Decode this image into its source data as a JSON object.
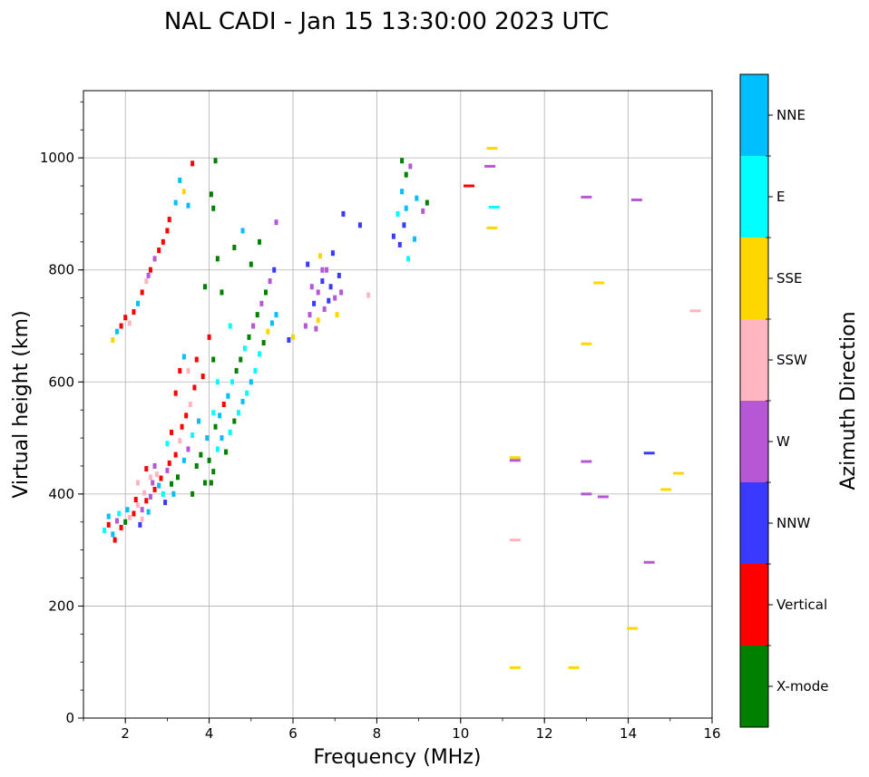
{
  "chart_data": {
    "type": "scatter",
    "title": "NAL CADI - Jan 15 13:30:00 2023 UTC",
    "xlabel": "Frequency (MHz)",
    "ylabel": "Virtual height (km)",
    "xlim": [
      1,
      16
    ],
    "ylim": [
      0,
      1120
    ],
    "xticks": [
      2,
      4,
      6,
      8,
      10,
      12,
      14,
      16
    ],
    "yticks": [
      0,
      200,
      400,
      600,
      800,
      1000
    ],
    "grid": true,
    "colorbar": {
      "label": "Azimuth Direction",
      "position": "right",
      "categories": [
        {
          "name": "X-mode",
          "color": "#008000"
        },
        {
          "name": "Vertical",
          "color": "#ff0000"
        },
        {
          "name": "NNW",
          "color": "#3a3aff"
        },
        {
          "name": "W",
          "color": "#b657d6"
        },
        {
          "name": "SSW",
          "color": "#ffb6c1"
        },
        {
          "name": "SSE",
          "color": "#ffd700"
        },
        {
          "name": "E",
          "color": "#00ffff"
        },
        {
          "name": "NNE",
          "color": "#00bfff"
        }
      ]
    },
    "points": [
      [
        1.5,
        335,
        "E"
      ],
      [
        1.6,
        345,
        "Vertical"
      ],
      [
        1.7,
        328,
        "NNE"
      ],
      [
        1.8,
        352,
        "W"
      ],
      [
        1.9,
        340,
        "Vertical"
      ],
      [
        1.6,
        360,
        "NNE"
      ],
      [
        1.75,
        318,
        "Vertical"
      ],
      [
        1.85,
        365,
        "E"
      ],
      [
        2.0,
        350,
        "X-mode"
      ],
      [
        2.1,
        358,
        "SSW"
      ],
      [
        2.05,
        372,
        "NNE"
      ],
      [
        2.2,
        365,
        "Vertical"
      ],
      [
        2.3,
        380,
        "SSW"
      ],
      [
        2.4,
        372,
        "W"
      ],
      [
        2.25,
        390,
        "Vertical"
      ],
      [
        2.35,
        345,
        "NNW"
      ],
      [
        2.5,
        388,
        "Vertical"
      ],
      [
        2.45,
        402,
        "SSW"
      ],
      [
        2.6,
        395,
        "W"
      ],
      [
        2.55,
        368,
        "NNE"
      ],
      [
        2.7,
        408,
        "Vertical"
      ],
      [
        2.65,
        420,
        "W"
      ],
      [
        2.8,
        415,
        "NNE"
      ],
      [
        2.75,
        435,
        "SSW"
      ],
      [
        2.9,
        400,
        "E"
      ],
      [
        2.85,
        428,
        "Vertical"
      ],
      [
        3.0,
        442,
        "W"
      ],
      [
        2.95,
        385,
        "NNW"
      ],
      [
        3.1,
        418,
        "X-mode"
      ],
      [
        3.05,
        455,
        "Vertical"
      ],
      [
        2.6,
        430,
        "SSW"
      ],
      [
        2.3,
        420,
        "SSW"
      ],
      [
        2.5,
        445,
        "Vertical"
      ],
      [
        2.7,
        450,
        "W"
      ],
      [
        2.4,
        355,
        "SSW"
      ],
      [
        3.2,
        470,
        "Vertical"
      ],
      [
        3.3,
        495,
        "SSW"
      ],
      [
        3.25,
        430,
        "X-mode"
      ],
      [
        3.4,
        460,
        "NNE"
      ],
      [
        3.35,
        520,
        "Vertical"
      ],
      [
        3.5,
        480,
        "W"
      ],
      [
        3.45,
        540,
        "Vertical"
      ],
      [
        3.6,
        505,
        "E"
      ],
      [
        3.55,
        560,
        "SSW"
      ],
      [
        3.7,
        450,
        "X-mode"
      ],
      [
        3.65,
        590,
        "Vertical"
      ],
      [
        3.8,
        470,
        "X-mode"
      ],
      [
        3.75,
        530,
        "NNE"
      ],
      [
        3.85,
        610,
        "Vertical"
      ],
      [
        3.2,
        580,
        "Vertical"
      ],
      [
        3.3,
        620,
        "Vertical"
      ],
      [
        3.4,
        645,
        "NNE"
      ],
      [
        3.1,
        510,
        "Vertical"
      ],
      [
        3.0,
        490,
        "E"
      ],
      [
        3.6,
        400,
        "X-mode"
      ],
      [
        3.5,
        620,
        "SSW"
      ],
      [
        3.7,
        640,
        "Vertical"
      ],
      [
        3.9,
        420,
        "X-mode"
      ],
      [
        3.95,
        500,
        "NNE"
      ],
      [
        3.15,
        400,
        "NNE"
      ],
      [
        4.1,
        440,
        "X-mode"
      ],
      [
        4.0,
        460,
        "X-mode"
      ],
      [
        4.2,
        480,
        "E"
      ],
      [
        4.3,
        500,
        "NNE"
      ],
      [
        4.15,
        520,
        "X-mode"
      ],
      [
        4.4,
        475,
        "X-mode"
      ],
      [
        4.25,
        540,
        "NNE"
      ],
      [
        4.5,
        510,
        "E"
      ],
      [
        4.35,
        560,
        "Vertical"
      ],
      [
        4.6,
        530,
        "X-mode"
      ],
      [
        4.45,
        575,
        "NNE"
      ],
      [
        4.7,
        545,
        "E"
      ],
      [
        4.55,
        600,
        "E"
      ],
      [
        4.8,
        565,
        "NNE"
      ],
      [
        4.65,
        620,
        "X-mode"
      ],
      [
        4.9,
        580,
        "E"
      ],
      [
        4.75,
        640,
        "X-mode"
      ],
      [
        5.0,
        600,
        "NNE"
      ],
      [
        4.85,
        660,
        "E"
      ],
      [
        5.1,
        620,
        "E"
      ],
      [
        4.95,
        680,
        "X-mode"
      ],
      [
        5.2,
        650,
        "E"
      ],
      [
        5.05,
        700,
        "W"
      ],
      [
        5.3,
        670,
        "X-mode"
      ],
      [
        5.15,
        720,
        "X-mode"
      ],
      [
        5.4,
        690,
        "SSE"
      ],
      [
        5.25,
        740,
        "W"
      ],
      [
        5.5,
        705,
        "NNE"
      ],
      [
        5.35,
        760,
        "X-mode"
      ],
      [
        5.6,
        720,
        "NNE"
      ],
      [
        5.45,
        780,
        "W"
      ],
      [
        5.55,
        800,
        "NNW"
      ],
      [
        5.0,
        810,
        "X-mode"
      ],
      [
        4.6,
        840,
        "X-mode"
      ],
      [
        4.8,
        870,
        "NNE"
      ],
      [
        5.2,
        850,
        "X-mode"
      ],
      [
        5.6,
        885,
        "W"
      ],
      [
        4.1,
        545,
        "E"
      ],
      [
        4.05,
        420,
        "X-mode"
      ],
      [
        4.2,
        600,
        "E"
      ],
      [
        4.0,
        680,
        "Vertical"
      ],
      [
        4.1,
        640,
        "X-mode"
      ],
      [
        4.3,
        760,
        "X-mode"
      ],
      [
        4.2,
        820,
        "X-mode"
      ],
      [
        4.1,
        910,
        "X-mode"
      ],
      [
        4.05,
        935,
        "X-mode"
      ],
      [
        4.15,
        995,
        "X-mode"
      ],
      [
        3.9,
        770,
        "X-mode"
      ],
      [
        4.5,
        700,
        "E"
      ],
      [
        1.8,
        690,
        "NNE"
      ],
      [
        1.9,
        700,
        "Vertical"
      ],
      [
        2.0,
        715,
        "Vertical"
      ],
      [
        2.1,
        705,
        "SSW"
      ],
      [
        2.2,
        725,
        "Vertical"
      ],
      [
        2.3,
        740,
        "NNE"
      ],
      [
        2.4,
        760,
        "Vertical"
      ],
      [
        2.5,
        780,
        "SSW"
      ],
      [
        2.6,
        800,
        "Vertical"
      ],
      [
        2.7,
        820,
        "W"
      ],
      [
        2.8,
        835,
        "Vertical"
      ],
      [
        2.9,
        850,
        "Vertical"
      ],
      [
        3.0,
        870,
        "Vertical"
      ],
      [
        3.05,
        890,
        "Vertical"
      ],
      [
        3.2,
        920,
        "NNE"
      ],
      [
        3.3,
        960,
        "NNE"
      ],
      [
        3.4,
        940,
        "SSE"
      ],
      [
        3.6,
        990,
        "Vertical"
      ],
      [
        3.5,
        915,
        "NNE"
      ],
      [
        2.55,
        790,
        "W"
      ],
      [
        6.3,
        700,
        "W"
      ],
      [
        6.4,
        720,
        "W"
      ],
      [
        6.5,
        740,
        "NNW"
      ],
      [
        6.6,
        760,
        "W"
      ],
      [
        6.7,
        780,
        "NNW"
      ],
      [
        6.8,
        800,
        "W"
      ],
      [
        6.9,
        770,
        "NNW"
      ],
      [
        7.0,
        750,
        "W"
      ],
      [
        7.1,
        790,
        "NNW"
      ],
      [
        6.55,
        695,
        "W"
      ],
      [
        6.65,
        825,
        "SSE"
      ],
      [
        6.75,
        730,
        "W"
      ],
      [
        6.85,
        745,
        "NNW"
      ],
      [
        6.95,
        830,
        "NNW"
      ],
      [
        7.05,
        720,
        "SSE"
      ],
      [
        6.35,
        810,
        "NNW"
      ],
      [
        6.45,
        770,
        "W"
      ],
      [
        7.15,
        760,
        "W"
      ],
      [
        6.6,
        710,
        "SSE"
      ],
      [
        6.7,
        800,
        "W"
      ],
      [
        7.2,
        900,
        "NNW"
      ],
      [
        7.6,
        880,
        "NNW"
      ],
      [
        7.8,
        755,
        "SSW"
      ],
      [
        6.0,
        680,
        "SSE"
      ],
      [
        5.9,
        675,
        "NNW"
      ],
      [
        8.4,
        860,
        "NNW"
      ],
      [
        8.5,
        900,
        "E"
      ],
      [
        8.6,
        940,
        "NNE"
      ],
      [
        8.7,
        970,
        "X-mode"
      ],
      [
        8.8,
        985,
        "W"
      ],
      [
        8.55,
        845,
        "NNW"
      ],
      [
        8.65,
        880,
        "NNW"
      ],
      [
        8.75,
        820,
        "E"
      ],
      [
        8.9,
        855,
        "NNE"
      ],
      [
        8.95,
        928,
        "NNE"
      ],
      [
        9.2,
        920,
        "X-mode"
      ],
      [
        9.1,
        905,
        "W"
      ],
      [
        8.6,
        995,
        "X-mode"
      ],
      [
        8.7,
        910,
        "NNE"
      ],
      [
        10.2,
        950,
        "Vertical"
      ],
      [
        10.7,
        985,
        "W"
      ],
      [
        10.75,
        1017,
        "SSE"
      ],
      [
        10.8,
        912,
        "E"
      ],
      [
        10.75,
        875,
        "SSE"
      ],
      [
        13.0,
        930,
        "W"
      ],
      [
        14.2,
        925,
        "W"
      ],
      [
        13.3,
        777,
        "SSE"
      ],
      [
        13.0,
        668,
        "SSE"
      ],
      [
        15.6,
        727,
        "SSW"
      ],
      [
        11.3,
        465,
        "SSE"
      ],
      [
        11.3,
        460,
        "W"
      ],
      [
        13.0,
        458,
        "W"
      ],
      [
        13.0,
        400,
        "W"
      ],
      [
        13.4,
        395,
        "W"
      ],
      [
        14.5,
        473,
        "NNW"
      ],
      [
        15.2,
        437,
        "SSE"
      ],
      [
        14.9,
        408,
        "SSE"
      ],
      [
        11.3,
        318,
        "SSW"
      ],
      [
        14.5,
        278,
        "W"
      ],
      [
        14.1,
        160,
        "SSE"
      ],
      [
        11.3,
        90,
        "SSE"
      ],
      [
        12.7,
        90,
        "SSE"
      ],
      [
        1.7,
        675,
        "SSE"
      ]
    ]
  }
}
